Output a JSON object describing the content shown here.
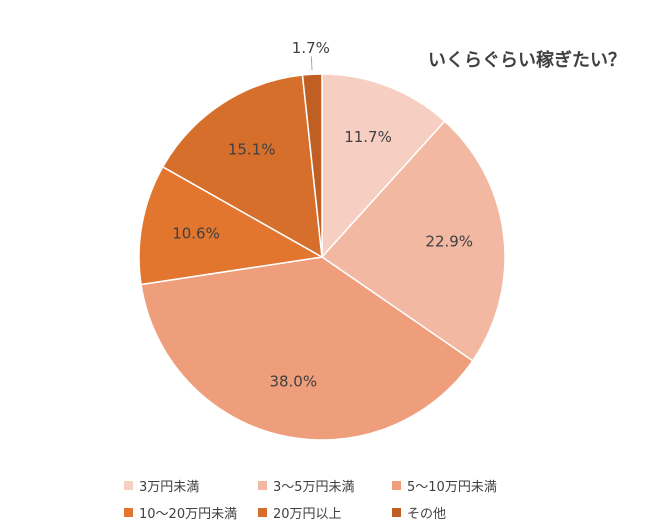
{
  "chart_data": {
    "type": "pie",
    "title": "いくらぐらい稼ぎたい？",
    "categories": [
      "3万円未満",
      "3～5万円未満",
      "5～10万円未満",
      "10～20万円未満",
      "20万円以上",
      "その他"
    ],
    "values": [
      11.7,
      22.9,
      38.0,
      10.6,
      15.1,
      1.7
    ],
    "data_labels": [
      "11.7%",
      "22.9%",
      "38.0%",
      "10.6%",
      "15.1%",
      "1.7%"
    ],
    "colors": [
      "#f6cfc2",
      "#f3b8a2",
      "#ef9e7c",
      "#e2762e",
      "#d66f2b",
      "#bf5f23"
    ],
    "legend_position": "bottom",
    "start_angle_deg": 0,
    "direction": "clockwise"
  }
}
